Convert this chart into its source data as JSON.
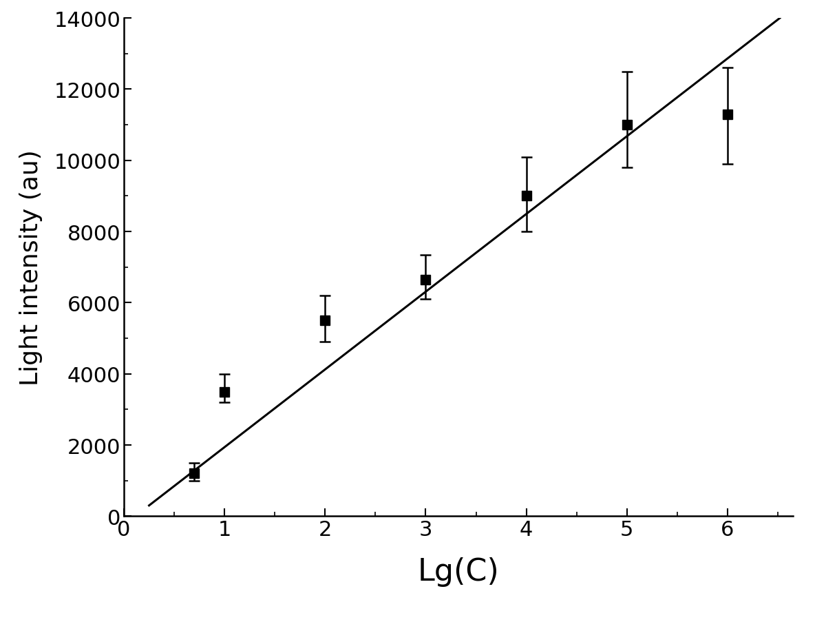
{
  "x": [
    0.7,
    1.0,
    2.0,
    3.0,
    4.0,
    5.0,
    6.0
  ],
  "y": [
    1200,
    3500,
    5500,
    6650,
    9000,
    11000,
    11300
  ],
  "yerr_lower": [
    200,
    300,
    600,
    550,
    1000,
    1200,
    1400
  ],
  "yerr_upper": [
    300,
    500,
    700,
    700,
    1100,
    1500,
    1300
  ],
  "line_x": [
    0.25,
    6.52
  ],
  "line_y": [
    300,
    14000
  ],
  "xlabel": "Lg(C)",
  "ylabel": "Light intensity (au)",
  "xlim": [
    0.0,
    6.65
  ],
  "ylim": [
    0,
    14000
  ],
  "xticks": [
    0,
    1,
    2,
    3,
    4,
    5,
    6
  ],
  "yticks": [
    0,
    2000,
    4000,
    6000,
    8000,
    10000,
    12000,
    14000
  ],
  "xlabel_fontsize": 32,
  "ylabel_fontsize": 26,
  "tick_fontsize": 22,
  "marker_size": 10,
  "line_color": "#000000",
  "marker_color": "#000000",
  "errorbar_color": "#000000",
  "background_color": "#ffffff"
}
